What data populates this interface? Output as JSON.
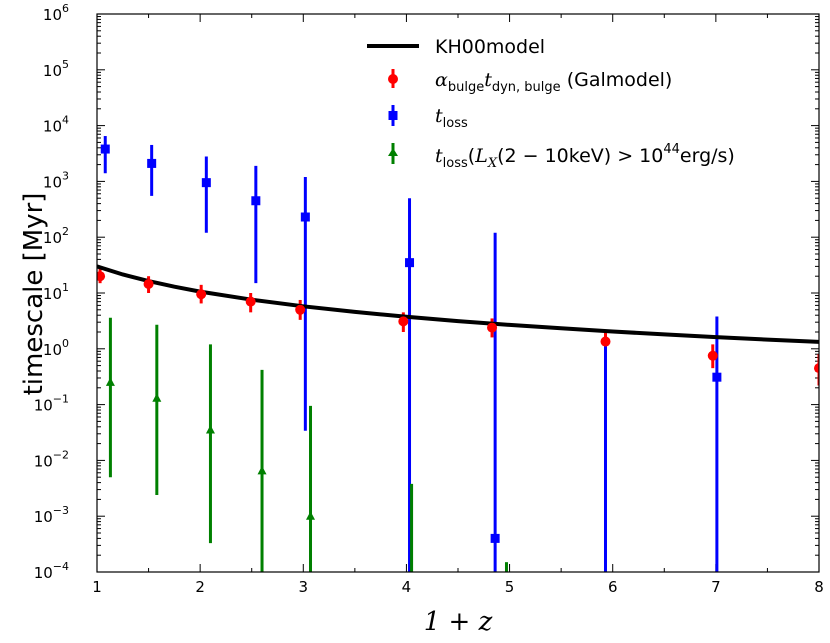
{
  "chart_data": {
    "type": "scatter",
    "xlabel": "1 + z",
    "ylabel": "timescale [Myr]",
    "xlim": [
      1,
      8
    ],
    "ylim_log10": [
      -4,
      6
    ],
    "x_ticks": [
      "1",
      "2",
      "3",
      "4",
      "5",
      "6",
      "7",
      "8"
    ],
    "y_ticks": [
      {
        "base": "10",
        "exp": "−4"
      },
      {
        "base": "10",
        "exp": "−3"
      },
      {
        "base": "10",
        "exp": "−2"
      },
      {
        "base": "10",
        "exp": "−1"
      },
      {
        "base": "10",
        "exp": "0"
      },
      {
        "base": "10",
        "exp": "1"
      },
      {
        "base": "10",
        "exp": "2"
      },
      {
        "base": "10",
        "exp": "3"
      },
      {
        "base": "10",
        "exp": "4"
      },
      {
        "base": "10",
        "exp": "5"
      },
      {
        "base": "10",
        "exp": "6"
      }
    ],
    "legend": {
      "position": "upper-right",
      "entries": [
        {
          "label": "KH00model",
          "color": "#000000",
          "marker": "line"
        },
        {
          "label_prefix": "α",
          "label_sub1": "bulge",
          "label_t": "t",
          "label_sub2": "dyn, bulge",
          "label_suffix": " (Galmodel)",
          "color": "#ff0000",
          "marker": "circle"
        },
        {
          "label_t": "t",
          "label_sub": "loss",
          "color": "#0000ff",
          "marker": "square"
        },
        {
          "label_t": "t",
          "label_sub": "loss",
          "label_mid1": "(",
          "label_L": "L",
          "label_Lsub": "X",
          "label_mid2": "(2 − 10keV) > 10",
          "label_exp": "44",
          "label_end": "erg/s)",
          "color": "#008000",
          "marker": "triangle"
        }
      ]
    },
    "series": [
      {
        "name": "KH00model",
        "kind": "line",
        "color": "#000000",
        "formula": "30 * x^-1.5",
        "x": [
          1.0,
          1.25,
          1.5,
          1.75,
          2.0,
          2.5,
          3.0,
          3.5,
          4.0,
          4.5,
          5.0,
          5.5,
          6.0,
          6.5,
          7.0,
          7.5,
          8.0
        ],
        "y": [
          30.0,
          21.47,
          16.33,
          12.96,
          10.61,
          7.59,
          5.77,
          4.58,
          3.75,
          3.14,
          2.68,
          2.33,
          2.04,
          1.81,
          1.62,
          1.46,
          1.33
        ]
      },
      {
        "name": "alpha_bulge t_dyn,bulge (Galmodel)",
        "kind": "points",
        "marker": "circle",
        "color": "#ff0000",
        "x": [
          1.03,
          1.5,
          2.01,
          2.49,
          2.97,
          3.97,
          4.83,
          5.93,
          6.97,
          8.0
        ],
        "y": [
          20,
          14.5,
          9.5,
          7,
          5,
          3.1,
          2.4,
          1.35,
          0.75,
          0.45
        ],
        "y_low": [
          15,
          10,
          6.5,
          4.5,
          3.3,
          2,
          1.6,
          0.9,
          0.45,
          0.22
        ],
        "y_high": [
          27,
          20,
          14,
          10,
          7.5,
          4.5,
          3.5,
          2,
          1.2,
          0.8
        ]
      },
      {
        "name": "t_loss",
        "kind": "points",
        "marker": "square",
        "color": "#0000ff",
        "x": [
          1.08,
          1.53,
          2.06,
          2.54,
          3.02,
          4.03,
          4.86,
          5.93,
          7.01
        ],
        "y": [
          3800,
          2100,
          950,
          450,
          230,
          35,
          0.0004,
          null,
          0.31
        ],
        "y_low": [
          1400,
          550,
          120,
          15,
          0.034,
          0.0001,
          0.0001,
          0.0001,
          0.0001
        ],
        "y_high": [
          6500,
          4500,
          2800,
          1900,
          1200,
          500,
          120,
          1.1,
          3.8
        ]
      },
      {
        "name": "t_loss (L_X(2-10keV) > 10^44 erg/s)",
        "kind": "points",
        "marker": "triangle",
        "color": "#008000",
        "x": [
          1.13,
          1.58,
          2.1,
          2.6,
          3.07,
          4.05,
          4.97
        ],
        "y": [
          0.25,
          0.13,
          0.035,
          0.0065,
          0.001,
          null,
          null
        ],
        "y_low": [
          0.005,
          0.0024,
          0.00033,
          0.0001,
          0.0001,
          0.0001,
          0.0001
        ],
        "y_high": [
          3.6,
          2.7,
          1.2,
          0.42,
          0.095,
          0.0038,
          0.00015
        ]
      }
    ]
  }
}
